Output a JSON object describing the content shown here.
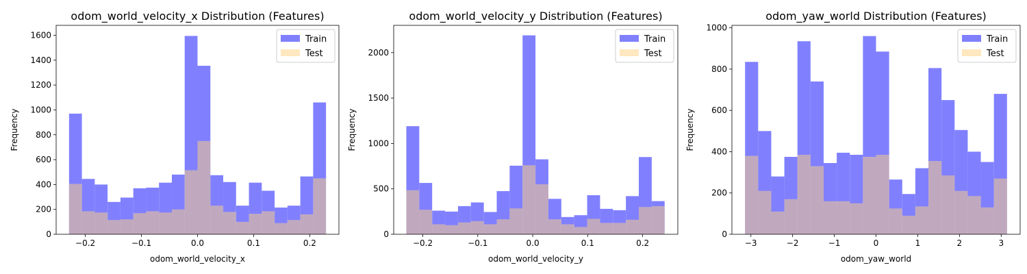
{
  "chart_data": [
    {
      "type": "histogram",
      "title": "odom_world_velocity_x Distribution (Features)",
      "xlabel": "odom_world_velocity_x",
      "ylabel": "Frequency",
      "xlim": [
        -0.252,
        0.252
      ],
      "ylim": [
        0,
        1680
      ],
      "xticks": [
        -0.2,
        -0.1,
        0.0,
        0.1,
        0.2
      ],
      "xtick_labels": [
        "−0.2",
        "−0.1",
        "0.0",
        "0.1",
        "0.2"
      ],
      "yticks": [
        0,
        200,
        400,
        600,
        800,
        1000,
        1200,
        1400,
        1600
      ],
      "ytick_labels": [
        "0",
        "200",
        "400",
        "600",
        "800",
        "1000",
        "1200",
        "1400",
        "1600"
      ],
      "bin_range": [
        -0.229,
        0.229
      ],
      "legend": {
        "position": "top-right"
      },
      "series": [
        {
          "name": "Train",
          "color": "#8080ff",
          "values": [
            970,
            445,
            400,
            260,
            295,
            370,
            375,
            415,
            480,
            1595,
            1355,
            475,
            420,
            230,
            415,
            350,
            215,
            230,
            465,
            1060
          ]
        },
        {
          "name": "Test",
          "color": "#ffd27f",
          "values": [
            405,
            185,
            175,
            115,
            120,
            170,
            185,
            175,
            200,
            515,
            750,
            230,
            180,
            100,
            165,
            185,
            90,
            115,
            160,
            450
          ]
        }
      ]
    },
    {
      "type": "histogram",
      "title": "odom_world_velocity_y Distribution (Features)",
      "xlabel": "odom_world_velocity_y",
      "ylabel": "Frequency",
      "xlim": [
        -0.253,
        0.264
      ],
      "ylim": [
        0,
        2300
      ],
      "xticks": [
        -0.2,
        -0.1,
        0.0,
        0.1,
        0.2
      ],
      "xtick_labels": [
        "−0.2",
        "−0.1",
        "0.0",
        "0.1",
        "0.2"
      ],
      "yticks": [
        0,
        500,
        1000,
        1500,
        2000
      ],
      "ytick_labels": [
        "0",
        "500",
        "1000",
        "1500",
        "2000"
      ],
      "bin_range": [
        -0.23,
        0.24
      ],
      "legend": {
        "position": "top-right"
      },
      "series": [
        {
          "name": "Train",
          "color": "#8080ff",
          "values": [
            1190,
            565,
            260,
            250,
            310,
            350,
            245,
            475,
            755,
            2190,
            825,
            390,
            190,
            210,
            430,
            280,
            265,
            420,
            850,
            365
          ]
        },
        {
          "name": "Test",
          "color": "#ffd27f",
          "values": [
            485,
            270,
            110,
            100,
            130,
            145,
            110,
            165,
            285,
            760,
            550,
            165,
            110,
            80,
            170,
            125,
            125,
            160,
            300,
            310
          ]
        }
      ]
    },
    {
      "type": "histogram",
      "title": "odom_yaw_world Distribution (Features)",
      "xlabel": "odom_yaw_world",
      "ylabel": "Frequency",
      "xlim": [
        -3.455,
        3.455
      ],
      "ylim": [
        0,
        1012
      ],
      "xticks": [
        -3,
        -2,
        -1,
        0,
        1,
        2,
        3
      ],
      "xtick_labels": [
        "−3",
        "−2",
        "−1",
        "0",
        "1",
        "2",
        "3"
      ],
      "yticks": [
        0,
        200,
        400,
        600,
        800,
        1000
      ],
      "ytick_labels": [
        "0",
        "200",
        "400",
        "600",
        "800",
        "1000"
      ],
      "bin_range": [
        -3.14,
        3.14
      ],
      "legend": {
        "position": "top-right"
      },
      "series": [
        {
          "name": "Train",
          "color": "#8080ff",
          "values": [
            835,
            500,
            280,
            375,
            935,
            740,
            345,
            395,
            385,
            960,
            885,
            265,
            195,
            320,
            805,
            650,
            505,
            400,
            350,
            680
          ]
        },
        {
          "name": "Test",
          "color": "#ffd27f",
          "values": [
            380,
            210,
            110,
            170,
            385,
            330,
            160,
            160,
            150,
            375,
            385,
            125,
            90,
            135,
            355,
            285,
            210,
            185,
            130,
            270
          ]
        }
      ]
    }
  ]
}
